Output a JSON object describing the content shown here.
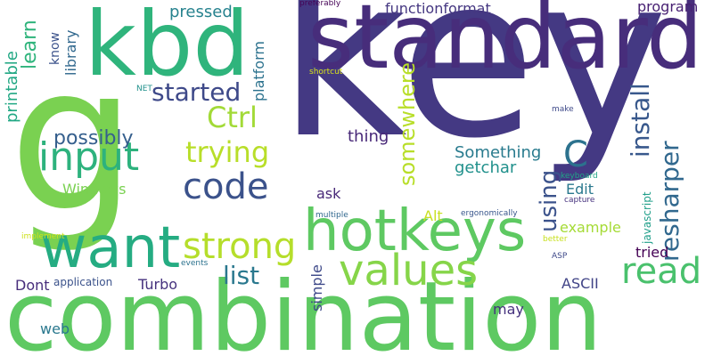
{
  "words": [
    {
      "text": "key",
      "color": "#443983"
    },
    {
      "text": "g",
      "color": "#7ad151"
    },
    {
      "text": "combination",
      "color": "#5ec962"
    },
    {
      "text": "standard",
      "color": "#472d7b"
    },
    {
      "text": "kbd",
      "color": "#2fb47c"
    },
    {
      "text": "hotkeys",
      "color": "#5ec962"
    },
    {
      "text": "want",
      "color": "#25ac82"
    },
    {
      "text": "values",
      "color": "#86d549"
    },
    {
      "text": "input",
      "color": "#2db27d"
    },
    {
      "text": "code",
      "color": "#3b528b"
    },
    {
      "text": "strong",
      "color": "#b5de2b"
    },
    {
      "text": "read",
      "color": "#4ac16d"
    },
    {
      "text": "Ctrl",
      "color": "#a2da37"
    },
    {
      "text": "trying",
      "color": "#b8de29"
    },
    {
      "text": "started",
      "color": "#3e4989"
    },
    {
      "text": "list",
      "color": "#2a788e"
    },
    {
      "text": "C",
      "color": "#2c728e"
    },
    {
      "text": "install",
      "color": "#38588c"
    },
    {
      "text": "resharper",
      "color": "#31688e"
    },
    {
      "text": "using",
      "color": "#3b528b"
    },
    {
      "text": "somewhere",
      "color": "#b8de29"
    },
    {
      "text": "possibly",
      "color": "#355f8d"
    },
    {
      "text": "Windows",
      "color": "#7ad151"
    },
    {
      "text": "Something",
      "color": "#297b8e"
    },
    {
      "text": "getchar",
      "color": "#21918c"
    },
    {
      "text": "thing",
      "color": "#482878"
    },
    {
      "text": "learn",
      "color": "#2fb47c"
    },
    {
      "text": "printable",
      "color": "#22a884"
    },
    {
      "text": "know",
      "color": "#3b528b"
    },
    {
      "text": "library",
      "color": "#31688e"
    },
    {
      "text": "platform",
      "color": "#2c728e"
    },
    {
      "text": "pressed",
      "color": "#26828e"
    },
    {
      "text": "functionformat",
      "color": "#453781"
    },
    {
      "text": "program",
      "color": "#482173"
    },
    {
      "text": "ask",
      "color": "#482878"
    },
    {
      "text": "Edit",
      "color": "#2a788e"
    },
    {
      "text": "Alt",
      "color": "#c8e020"
    },
    {
      "text": "example",
      "color": "#a5db36"
    },
    {
      "text": "tried",
      "color": "#440154"
    },
    {
      "text": "javascript",
      "color": "#1f9e89"
    },
    {
      "text": "Turbo",
      "color": "#46327e"
    },
    {
      "text": "ASCII",
      "color": "#414487"
    },
    {
      "text": "Dont",
      "color": "#472d7b"
    },
    {
      "text": "application",
      "color": "#3b528b"
    },
    {
      "text": "web",
      "color": "#2a788e"
    },
    {
      "text": "simple",
      "color": "#3e4989"
    },
    {
      "text": "may",
      "color": "#46327e"
    },
    {
      "text": "preferably",
      "color": "#440154"
    },
    {
      "text": "shortcut",
      "color": "#d8e219"
    },
    {
      "text": "NET",
      "color": "#21918c"
    },
    {
      "text": "make",
      "color": "#3e4989"
    },
    {
      "text": "keyboard",
      "color": "#20a486"
    },
    {
      "text": "capture",
      "color": "#46327e"
    },
    {
      "text": "multiple",
      "color": "#31688e"
    },
    {
      "text": "ergonomically",
      "color": "#39568c"
    },
    {
      "text": "implement",
      "color": "#cde11d"
    },
    {
      "text": "better",
      "color": "#c8e020"
    },
    {
      "text": "events",
      "color": "#2c728e"
    },
    {
      "text": "ASP",
      "color": "#3e4989"
    }
  ]
}
